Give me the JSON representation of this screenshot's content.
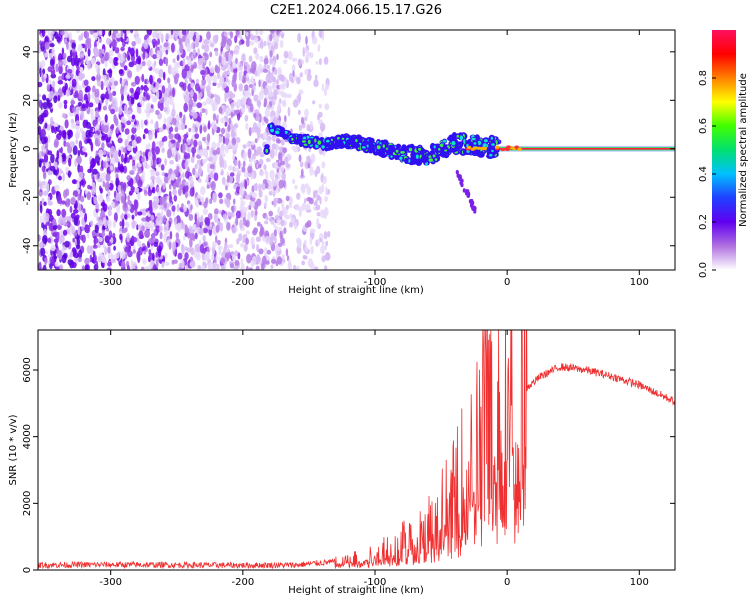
{
  "figure": {
    "title": "C2E1.2024.066.15.17.G26"
  },
  "chart_data": [
    {
      "type": "heatmap",
      "xlabel": "Height of straight line (km)",
      "ylabel": "Frequency (Hz)",
      "xlim": [
        -355,
        127
      ],
      "ylim": [
        -50,
        49
      ],
      "x_ticks": [
        "-300",
        "-200",
        "-100",
        "0",
        "100"
      ],
      "y_ticks": [
        "-40",
        "-20",
        "0",
        "20",
        "40"
      ],
      "grid": false,
      "colorbar": {
        "label": "Normalized spectral amplitude",
        "range": [
          0.0,
          1.0
        ],
        "ticks": [
          "0.0",
          "0.2",
          "0.4",
          "0.6",
          "0.8"
        ],
        "colors": [
          "#ffffff",
          "#b070e0",
          "#6000f0",
          "#2040ff",
          "#00c0ff",
          "#00e070",
          "#40ff00",
          "#ffff00",
          "#ff8000",
          "#ff0000",
          "#ff1060"
        ]
      },
      "noise_region_x": [
        -355,
        -135
      ],
      "signal_trace": [
        {
          "x": -180,
          "y": 9
        },
        {
          "x": -160,
          "y": 4
        },
        {
          "x": -140,
          "y": 2
        },
        {
          "x": -120,
          "y": 3
        },
        {
          "x": -100,
          "y": 1
        },
        {
          "x": -80,
          "y": -2
        },
        {
          "x": -60,
          "y": -3
        },
        {
          "x": -40,
          "y": 2
        },
        {
          "x": -20,
          "y": 1
        },
        {
          "x": 0,
          "y": 0
        },
        {
          "x": 127,
          "y": 0
        }
      ],
      "carrier": {
        "y": 0,
        "x_range": [
          -10,
          127
        ]
      }
    },
    {
      "type": "line",
      "xlabel": "Height of straight line (km)",
      "ylabel": "SNR (10 * v/v)",
      "xlim": [
        -355,
        127
      ],
      "ylim": [
        0,
        7200
      ],
      "x_ticks": [
        "-300",
        "-200",
        "-100",
        "0",
        "100"
      ],
      "y_ticks": [
        "0",
        "2000",
        "4000",
        "6000"
      ],
      "grid": false,
      "series_color": "#f03030",
      "envelope": [
        {
          "x": -355,
          "y": 150
        },
        {
          "x": -300,
          "y": 160
        },
        {
          "x": -250,
          "y": 150
        },
        {
          "x": -200,
          "y": 140
        },
        {
          "x": -160,
          "y": 150
        },
        {
          "x": -130,
          "y": 250
        },
        {
          "x": -110,
          "y": 350
        },
        {
          "x": -100,
          "y": 500
        },
        {
          "x": -80,
          "y": 800
        },
        {
          "x": -60,
          "y": 1300
        },
        {
          "x": -40,
          "y": 2200
        },
        {
          "x": -25,
          "y": 3500
        },
        {
          "x": -15,
          "y": 4600
        },
        {
          "x": -5,
          "y": 4800
        },
        {
          "x": 10,
          "y": 5300
        },
        {
          "x": 25,
          "y": 5800
        },
        {
          "x": 40,
          "y": 6100
        },
        {
          "x": 60,
          "y": 6000
        },
        {
          "x": 80,
          "y": 5800
        },
        {
          "x": 100,
          "y": 5550
        },
        {
          "x": 127,
          "y": 5050
        }
      ]
    }
  ]
}
